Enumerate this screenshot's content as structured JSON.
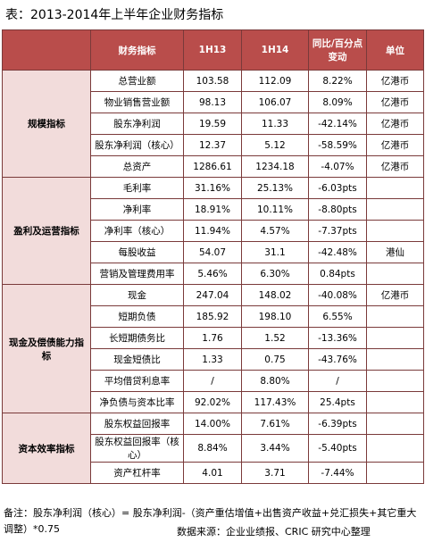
{
  "header": {
    "title": "表：2013-2014年上半年企业财务指标"
  },
  "table": {
    "columns": [
      "财务指标",
      "1H13",
      "1H14",
      "同比/百分点变动",
      "单位"
    ],
    "groups": [
      {
        "name": "规模指标",
        "rows": [
          [
            "总营业额",
            "103.58",
            "112.09",
            "8.22%",
            "亿港币"
          ],
          [
            "物业销售营业额",
            "98.13",
            "106.07",
            "8.09%",
            "亿港币"
          ],
          [
            "股东净利润",
            "19.59",
            "11.33",
            "-42.14%",
            "亿港币"
          ],
          [
            "股东净利润（核心）",
            "12.37",
            "5.12",
            "-58.59%",
            "亿港币"
          ],
          [
            "总资产",
            "1286.61",
            "1234.18",
            "-4.07%",
            "亿港币"
          ]
        ]
      },
      {
        "name": "盈利及运营指标",
        "rows": [
          [
            "毛利率",
            "31.16%",
            "25.13%",
            "-6.03pts"
          ],
          [
            "净利率",
            "18.91%",
            "10.11%",
            "-8.80pts"
          ],
          [
            "净利率（核心）",
            "11.94%",
            "4.57%",
            "-7.37pts"
          ],
          [
            "每股收益",
            "54.07",
            "31.1",
            "-42.48%",
            "港仙"
          ],
          [
            "营销及管理费用率",
            "5.46%",
            "6.30%",
            "0.84pts"
          ]
        ]
      },
      {
        "name": "现金及偿债能力指标",
        "rows": [
          [
            "现金",
            "247.04",
            "148.02",
            "-40.08%",
            "亿港币"
          ],
          [
            "短期负债",
            "185.92",
            "198.10",
            "6.55%"
          ],
          [
            "长短期债务比",
            "1.76",
            "1.52",
            "-13.36%"
          ],
          [
            "现金短债比",
            "1.33",
            "0.75",
            "-43.76%"
          ],
          [
            "平均借贷利息率",
            "/",
            "8.80%",
            "/"
          ],
          [
            "净负债与资本比率",
            "92.02%",
            "117.43%",
            "25.4pts"
          ]
        ]
      },
      {
        "name": "资本效率指标",
        "rows": [
          [
            "股东权益回报率",
            "14.00%",
            "7.61%",
            "-6.39pts"
          ],
          [
            "股东权益回报率（核心）",
            "8.84%",
            "3.44%",
            "-5.40pts"
          ],
          [
            "资产杠杆率",
            "4.01",
            "3.71",
            "-7.44%"
          ]
        ]
      }
    ]
  },
  "footer": {
    "note": "备注：股东净利润（核心）= 股东净利润-（资产重估增值+出售资产收益+兑汇损失+其它重大调整）*0.75",
    "source": "数据来源：企业业绩报、CRIC 研究中心整理"
  }
}
